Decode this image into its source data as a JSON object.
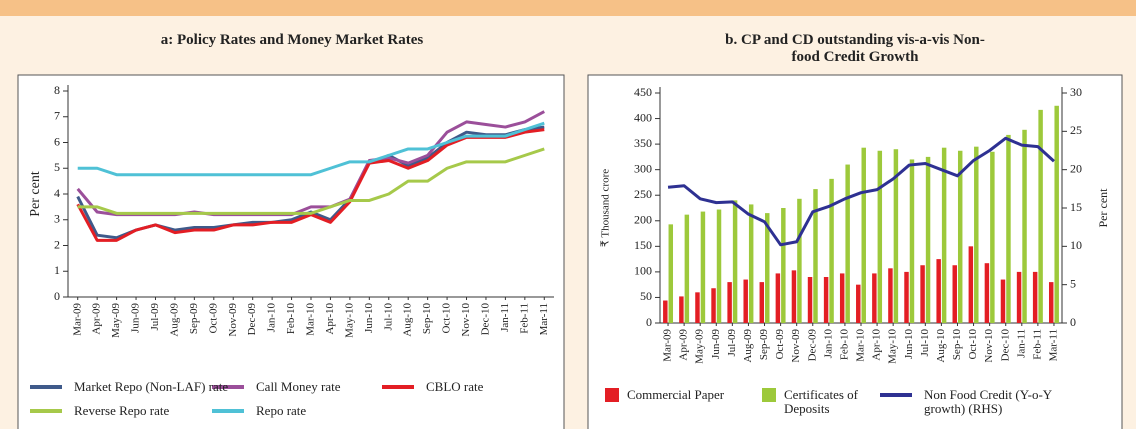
{
  "chart_data": [
    {
      "type": "line",
      "title": "a: Policy Rates and Money Market Rates",
      "ylabel": "Per cent",
      "categories": [
        "Mar-09",
        "Apr-09",
        "May-09",
        "Jun-09",
        "Jul-09",
        "Aug-09",
        "Sep-09",
        "Oct-09",
        "Nov-09",
        "Dec-09",
        "Jan-10",
        "Feb-10",
        "Mar-10",
        "Apr-10",
        "May-10",
        "Jun-10",
        "Jul-10",
        "Aug-10",
        "Sep-10",
        "Oct-10",
        "Nov-10",
        "Dec-10",
        "Jan-11",
        "Feb-11",
        "Mar-11"
      ],
      "ylim": [
        0,
        8
      ],
      "yticks": [
        0,
        1,
        2,
        3,
        4,
        5,
        6,
        7,
        8
      ],
      "series": [
        {
          "name": "Market Repo (Non-LAF) rate",
          "color": "#3f5a8a",
          "values": [
            3.9,
            2.4,
            2.3,
            2.6,
            2.8,
            2.6,
            2.7,
            2.7,
            2.8,
            2.9,
            2.9,
            3.0,
            3.3,
            3.0,
            3.8,
            5.2,
            5.5,
            5.1,
            5.4,
            6.0,
            6.4,
            6.3,
            6.3,
            6.5,
            6.6
          ]
        },
        {
          "name": "Call Money rate",
          "color": "#9b4f9a",
          "values": [
            4.2,
            3.3,
            3.2,
            3.2,
            3.2,
            3.2,
            3.3,
            3.2,
            3.2,
            3.2,
            3.2,
            3.2,
            3.5,
            3.5,
            3.8,
            5.3,
            5.4,
            5.2,
            5.5,
            6.4,
            6.8,
            6.7,
            6.6,
            6.8,
            7.2
          ]
        },
        {
          "name": "CBLO rate",
          "color": "#e31e24",
          "values": [
            3.6,
            2.2,
            2.2,
            2.6,
            2.8,
            2.5,
            2.6,
            2.6,
            2.8,
            2.8,
            2.9,
            2.9,
            3.2,
            2.9,
            3.7,
            5.2,
            5.3,
            5.0,
            5.3,
            5.9,
            6.2,
            6.2,
            6.2,
            6.4,
            6.5
          ]
        },
        {
          "name": "Reverse Repo rate",
          "color": "#a6c94a",
          "values": [
            3.5,
            3.5,
            3.25,
            3.25,
            3.25,
            3.25,
            3.25,
            3.25,
            3.25,
            3.25,
            3.25,
            3.25,
            3.25,
            3.5,
            3.75,
            3.75,
            4,
            4.5,
            4.5,
            5,
            5.25,
            5.25,
            5.25,
            5.5,
            5.75
          ]
        },
        {
          "name": "Repo rate",
          "color": "#4fc1d6",
          "values": [
            5,
            5,
            4.75,
            4.75,
            4.75,
            4.75,
            4.75,
            4.75,
            4.75,
            4.75,
            4.75,
            4.75,
            4.75,
            5,
            5.25,
            5.25,
            5.5,
            5.75,
            5.75,
            6,
            6.25,
            6.25,
            6.25,
            6.5,
            6.75
          ]
        }
      ]
    },
    {
      "type": "bar",
      "title": "b. CP and CD outstanding vis-a-vis Non-food Credit Growth",
      "ylabel": "₹ Thousand crore",
      "y2label": "Per cent",
      "categories": [
        "Mar-09",
        "Apr-09",
        "May-09",
        "Jun-09",
        "Jul-09",
        "Aug-09",
        "Sep-09",
        "Oct-09",
        "Nov-09",
        "Dec-09",
        "Jan-10",
        "Feb-10",
        "Mar-10",
        "Apr-10",
        "May-10",
        "Jun-10",
        "Jul-10",
        "Aug-10",
        "Sep-10",
        "Oct-10",
        "Nov-10",
        "Dec-10",
        "Jan-11",
        "Feb-11",
        "Mar-11"
      ],
      "ylim": [
        0,
        450
      ],
      "yticks": [
        0,
        50,
        100,
        150,
        200,
        250,
        300,
        350,
        400,
        450
      ],
      "y2lim": [
        0,
        30
      ],
      "y2ticks": [
        0,
        5,
        10,
        15,
        20,
        25,
        30
      ],
      "series": [
        {
          "name": "Commercial Paper",
          "color": "#e31e24",
          "values": [
            44,
            52,
            60,
            68,
            80,
            85,
            80,
            97,
            103,
            90,
            90,
            97,
            75,
            97,
            107,
            100,
            113,
            125,
            113,
            150,
            117,
            85,
            100,
            100,
            80
          ]
        },
        {
          "name": "Certificates of Deposits",
          "color": "#9dc93b",
          "values": [
            193,
            212,
            218,
            222,
            240,
            232,
            215,
            225,
            243,
            262,
            282,
            310,
            343,
            337,
            340,
            320,
            325,
            343,
            337,
            345,
            335,
            368,
            378,
            417,
            425
          ]
        },
        {
          "name": "Non Food Credit (Y-o-Y growth) (RHS)",
          "color": "#2e3192",
          "type": "line",
          "axis": "y2",
          "values": [
            17.7,
            17.9,
            16.2,
            15.7,
            15.8,
            14.2,
            13.2,
            10.2,
            10.6,
            14.5,
            15.2,
            16.2,
            17.0,
            17.4,
            18.8,
            20.6,
            20.8,
            20.0,
            19.2,
            21.2,
            22.5,
            24.1,
            23.2,
            23.0,
            21.1
          ]
        }
      ]
    }
  ]
}
